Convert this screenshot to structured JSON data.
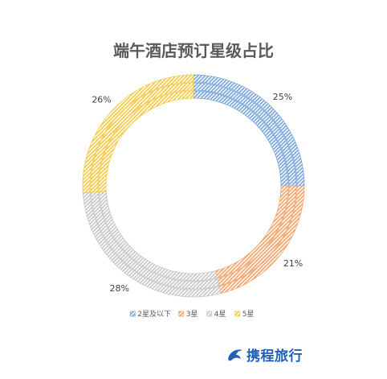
{
  "chart_data": {
    "type": "doughnut",
    "title": "端午酒店预订星级占比",
    "categories": [
      "2星及以下",
      "3星",
      "4星",
      "5星"
    ],
    "series": [
      {
        "values": [
          25,
          21,
          28,
          26
        ]
      },
      {
        "values": [
          25,
          21,
          28,
          26
        ]
      },
      {
        "values": [
          25,
          21,
          28,
          26
        ]
      }
    ],
    "data_labels": [
      "25%",
      "21%",
      "28%",
      "26%"
    ],
    "colors": [
      "#7aa6dc",
      "#f4a46c",
      "#c8c8c8",
      "#f6c94a"
    ],
    "legend_position": "bottom"
  },
  "brand": {
    "name": "携程旅行",
    "icon": "dolphin-logo-icon"
  }
}
